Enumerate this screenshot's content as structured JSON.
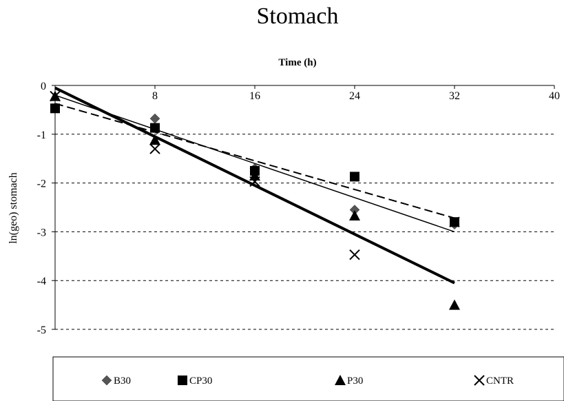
{
  "chart_data": {
    "type": "scatter",
    "title": "Stomach",
    "xlabel": "Time (h)",
    "ylabel": "ln(geo) stomach",
    "xlim": [
      0,
      40
    ],
    "ylim": [
      -5,
      0
    ],
    "xticks": [
      8,
      16,
      24,
      32,
      40
    ],
    "yticks": [
      0,
      -1,
      -2,
      -3,
      -4,
      -5
    ],
    "x_axis_position": "top",
    "grid": "horizontal dashed",
    "legend_position": "bottom",
    "series": [
      {
        "name": "B30",
        "marker": "diamond",
        "color": "#555555",
        "points": [
          [
            0,
            -0.45
          ],
          [
            8,
            -0.68
          ],
          [
            16,
            -1.7
          ],
          [
            24,
            -2.55
          ],
          [
            32,
            -2.85
          ]
        ]
      },
      {
        "name": "CP30",
        "marker": "square",
        "color": "#000000",
        "points": [
          [
            0,
            -0.47
          ],
          [
            8,
            -0.87
          ],
          [
            16,
            -1.75
          ],
          [
            24,
            -1.87
          ],
          [
            32,
            -2.8
          ]
        ]
      },
      {
        "name": "P30",
        "marker": "triangle",
        "color": "#000000",
        "points": [
          [
            0,
            -0.22
          ],
          [
            8,
            -1.12
          ],
          [
            16,
            -1.85
          ],
          [
            24,
            -2.67
          ],
          [
            32,
            -4.5
          ]
        ]
      },
      {
        "name": "CNTR",
        "marker": "x",
        "color": "#000000",
        "points": [
          [
            0,
            -0.22
          ],
          [
            8,
            -1.3
          ],
          [
            16,
            -1.97
          ],
          [
            24,
            -3.47
          ],
          [
            32,
            -2.8
          ]
        ]
      }
    ],
    "trendlines": [
      {
        "style": "dashed",
        "width": 2,
        "points": [
          [
            0,
            -0.37
          ],
          [
            32,
            -2.72
          ]
        ]
      },
      {
        "style": "solid",
        "width": 1.5,
        "points": [
          [
            0,
            -0.2
          ],
          [
            32,
            -3.0
          ]
        ]
      },
      {
        "style": "solid",
        "width": 4,
        "points": [
          [
            0,
            -0.05
          ],
          [
            32,
            -4.05
          ]
        ]
      }
    ]
  }
}
